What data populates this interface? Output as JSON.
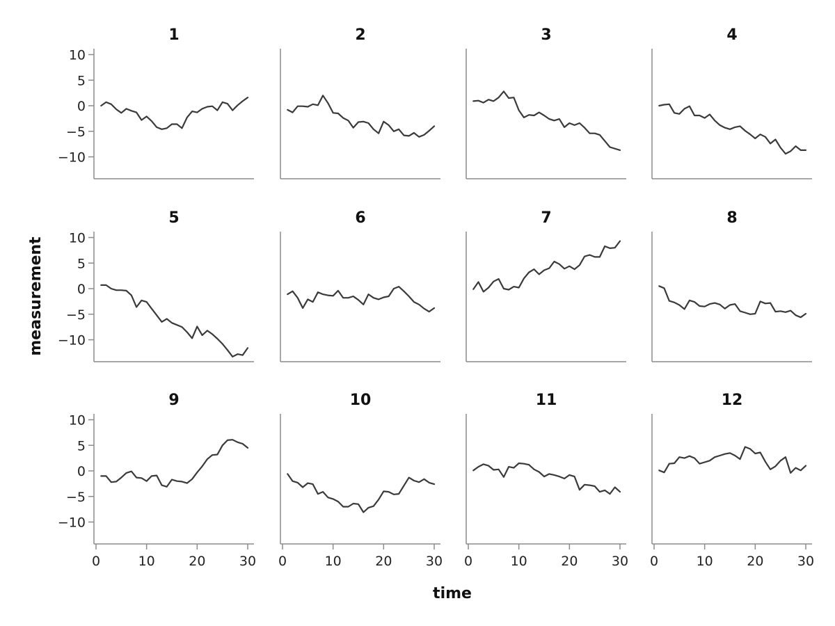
{
  "chart_data": {
    "type": "line",
    "layout": "small-multiples 3x4",
    "xlabel": "time",
    "ylabel": "measurement",
    "xlim": [
      0,
      30
    ],
    "ylim": [
      -14,
      10
    ],
    "xticks": [
      0,
      10,
      20,
      30
    ],
    "yticks": [
      10,
      5,
      0,
      -5,
      -10
    ],
    "line_color": "#3a3a3a",
    "axis_color": "#8c8c8c",
    "grid": false,
    "x": [
      1,
      2,
      3,
      4,
      5,
      6,
      7,
      8,
      9,
      10,
      11,
      12,
      13,
      14,
      15,
      16,
      17,
      18,
      19,
      20,
      21,
      22,
      23,
      24,
      25,
      26,
      27,
      28,
      29,
      30
    ],
    "panels": [
      {
        "title": "1",
        "values": [
          0,
          0.7,
          0.3,
          -0.7,
          -1.4,
          -0.6,
          -1.0,
          -1.3,
          -2.8,
          -2.1,
          -3.0,
          -4.2,
          -4.6,
          -4.4,
          -3.6,
          -3.6,
          -4.4,
          -2.3,
          -1.1,
          -1.3,
          -0.6,
          -0.2,
          -0.1,
          -0.9,
          0.7,
          0.4,
          -0.9,
          0.1,
          0.9,
          1.6
        ]
      },
      {
        "title": "2",
        "values": [
          -0.8,
          -1.3,
          -0.1,
          -0.1,
          -0.2,
          0.3,
          0.1,
          2.0,
          0.5,
          -1.4,
          -1.5,
          -2.4,
          -2.9,
          -4.3,
          -3.2,
          -3.1,
          -3.4,
          -4.6,
          -5.4,
          -3.1,
          -3.8,
          -5.0,
          -4.6,
          -5.8,
          -5.9,
          -5.3,
          -6.1,
          -5.7,
          -4.9,
          -4.0
        ]
      },
      {
        "title": "3",
        "values": [
          0.9,
          1.0,
          0.6,
          1.2,
          0.9,
          1.6,
          2.8,
          1.5,
          1.6,
          -0.9,
          -2.3,
          -1.8,
          -1.9,
          -1.3,
          -1.9,
          -2.6,
          -2.9,
          -2.6,
          -4.2,
          -3.4,
          -3.8,
          -3.4,
          -4.3,
          -5.4,
          -5.4,
          -5.7,
          -6.9,
          -8.1,
          -8.4,
          -8.7
        ]
      },
      {
        "title": "4",
        "values": [
          0,
          0.2,
          0.3,
          -1.4,
          -1.6,
          -0.6,
          -0.1,
          -1.9,
          -1.9,
          -2.4,
          -1.7,
          -2.9,
          -3.8,
          -4.3,
          -4.6,
          -4.2,
          -4.0,
          -4.9,
          -5.6,
          -6.4,
          -5.6,
          -6.1,
          -7.4,
          -6.6,
          -8.2,
          -9.4,
          -8.9,
          -7.9,
          -8.7,
          -8.7
        ]
      },
      {
        "title": "5",
        "values": [
          0.7,
          0.7,
          0,
          -0.3,
          -0.3,
          -0.4,
          -1.3,
          -3.6,
          -2.3,
          -2.6,
          -3.9,
          -5.2,
          -6.5,
          -5.9,
          -6.7,
          -7.1,
          -7.5,
          -8.5,
          -9.7,
          -7.4,
          -9.1,
          -8.2,
          -8.9,
          -9.8,
          -10.8,
          -12.0,
          -13.3,
          -12.8,
          -13.0,
          -11.6
        ]
      },
      {
        "title": "6",
        "values": [
          -1.1,
          -0.5,
          -1.8,
          -3.8,
          -2.1,
          -2.6,
          -0.7,
          -1.1,
          -1.3,
          -1.4,
          -0.4,
          -1.8,
          -1.8,
          -1.5,
          -2.2,
          -3.1,
          -1.1,
          -1.8,
          -2.1,
          -1.7,
          -1.5,
          0,
          0.4,
          -0.5,
          -1.5,
          -2.6,
          -3.1,
          -3.9,
          -4.5,
          -3.8
        ]
      },
      {
        "title": "7",
        "values": [
          -0.1,
          1.3,
          -0.6,
          0.2,
          1.4,
          1.9,
          0,
          -0.2,
          0.4,
          0.2,
          2.0,
          3.2,
          3.8,
          2.8,
          3.6,
          4.0,
          5.3,
          4.8,
          3.9,
          4.4,
          3.8,
          4.6,
          6.3,
          6.6,
          6.2,
          6.2,
          8.3,
          7.9,
          8.0,
          9.3
        ]
      },
      {
        "title": "8",
        "values": [
          0.5,
          0.1,
          -2.4,
          -2.7,
          -3.2,
          -4.0,
          -2.3,
          -2.6,
          -3.4,
          -3.5,
          -3.0,
          -2.8,
          -3.1,
          -3.9,
          -3.2,
          -3.0,
          -4.4,
          -4.7,
          -5.0,
          -4.9,
          -2.5,
          -2.9,
          -2.8,
          -4.5,
          -4.4,
          -4.6,
          -4.3,
          -5.2,
          -5.6,
          -4.9
        ]
      },
      {
        "title": "9",
        "values": [
          -1.0,
          -1.0,
          -2.2,
          -2.1,
          -1.3,
          -0.4,
          -0.1,
          -1.3,
          -1.4,
          -2.0,
          -1.0,
          -0.9,
          -2.8,
          -3.1,
          -1.7,
          -2.0,
          -2.1,
          -2.4,
          -1.6,
          -0.3,
          0.9,
          2.3,
          3.1,
          3.2,
          5.0,
          6.0,
          6.1,
          5.6,
          5.3,
          4.5
        ]
      },
      {
        "title": "10",
        "values": [
          -0.6,
          -2.0,
          -2.3,
          -3.2,
          -2.4,
          -2.6,
          -4.5,
          -4.1,
          -5.2,
          -5.5,
          -6.0,
          -7.0,
          -7.0,
          -6.4,
          -6.5,
          -8.1,
          -7.2,
          -6.9,
          -5.6,
          -4.0,
          -4.1,
          -4.6,
          -4.5,
          -2.9,
          -1.3,
          -1.9,
          -2.2,
          -1.6,
          -2.3,
          -2.6
        ]
      },
      {
        "title": "11",
        "values": [
          0.1,
          0.8,
          1.3,
          1.0,
          0.2,
          0.3,
          -1.2,
          0.8,
          0.6,
          1.5,
          1.4,
          1.2,
          0.3,
          -0.2,
          -1.1,
          -0.6,
          -0.8,
          -1.1,
          -1.5,
          -0.8,
          -1.1,
          -3.7,
          -2.7,
          -2.8,
          -3.0,
          -4.1,
          -3.8,
          -4.5,
          -3.2,
          -4.1
        ]
      },
      {
        "title": "12",
        "values": [
          0.1,
          -0.3,
          1.4,
          1.5,
          2.7,
          2.5,
          2.9,
          2.5,
          1.4,
          1.7,
          2.0,
          2.7,
          3.0,
          3.3,
          3.5,
          3.0,
          2.3,
          4.7,
          4.3,
          3.4,
          3.6,
          1.8,
          0.3,
          0.9,
          2.0,
          2.7,
          -0.4,
          0.6,
          0.1,
          1.0
        ]
      }
    ]
  }
}
